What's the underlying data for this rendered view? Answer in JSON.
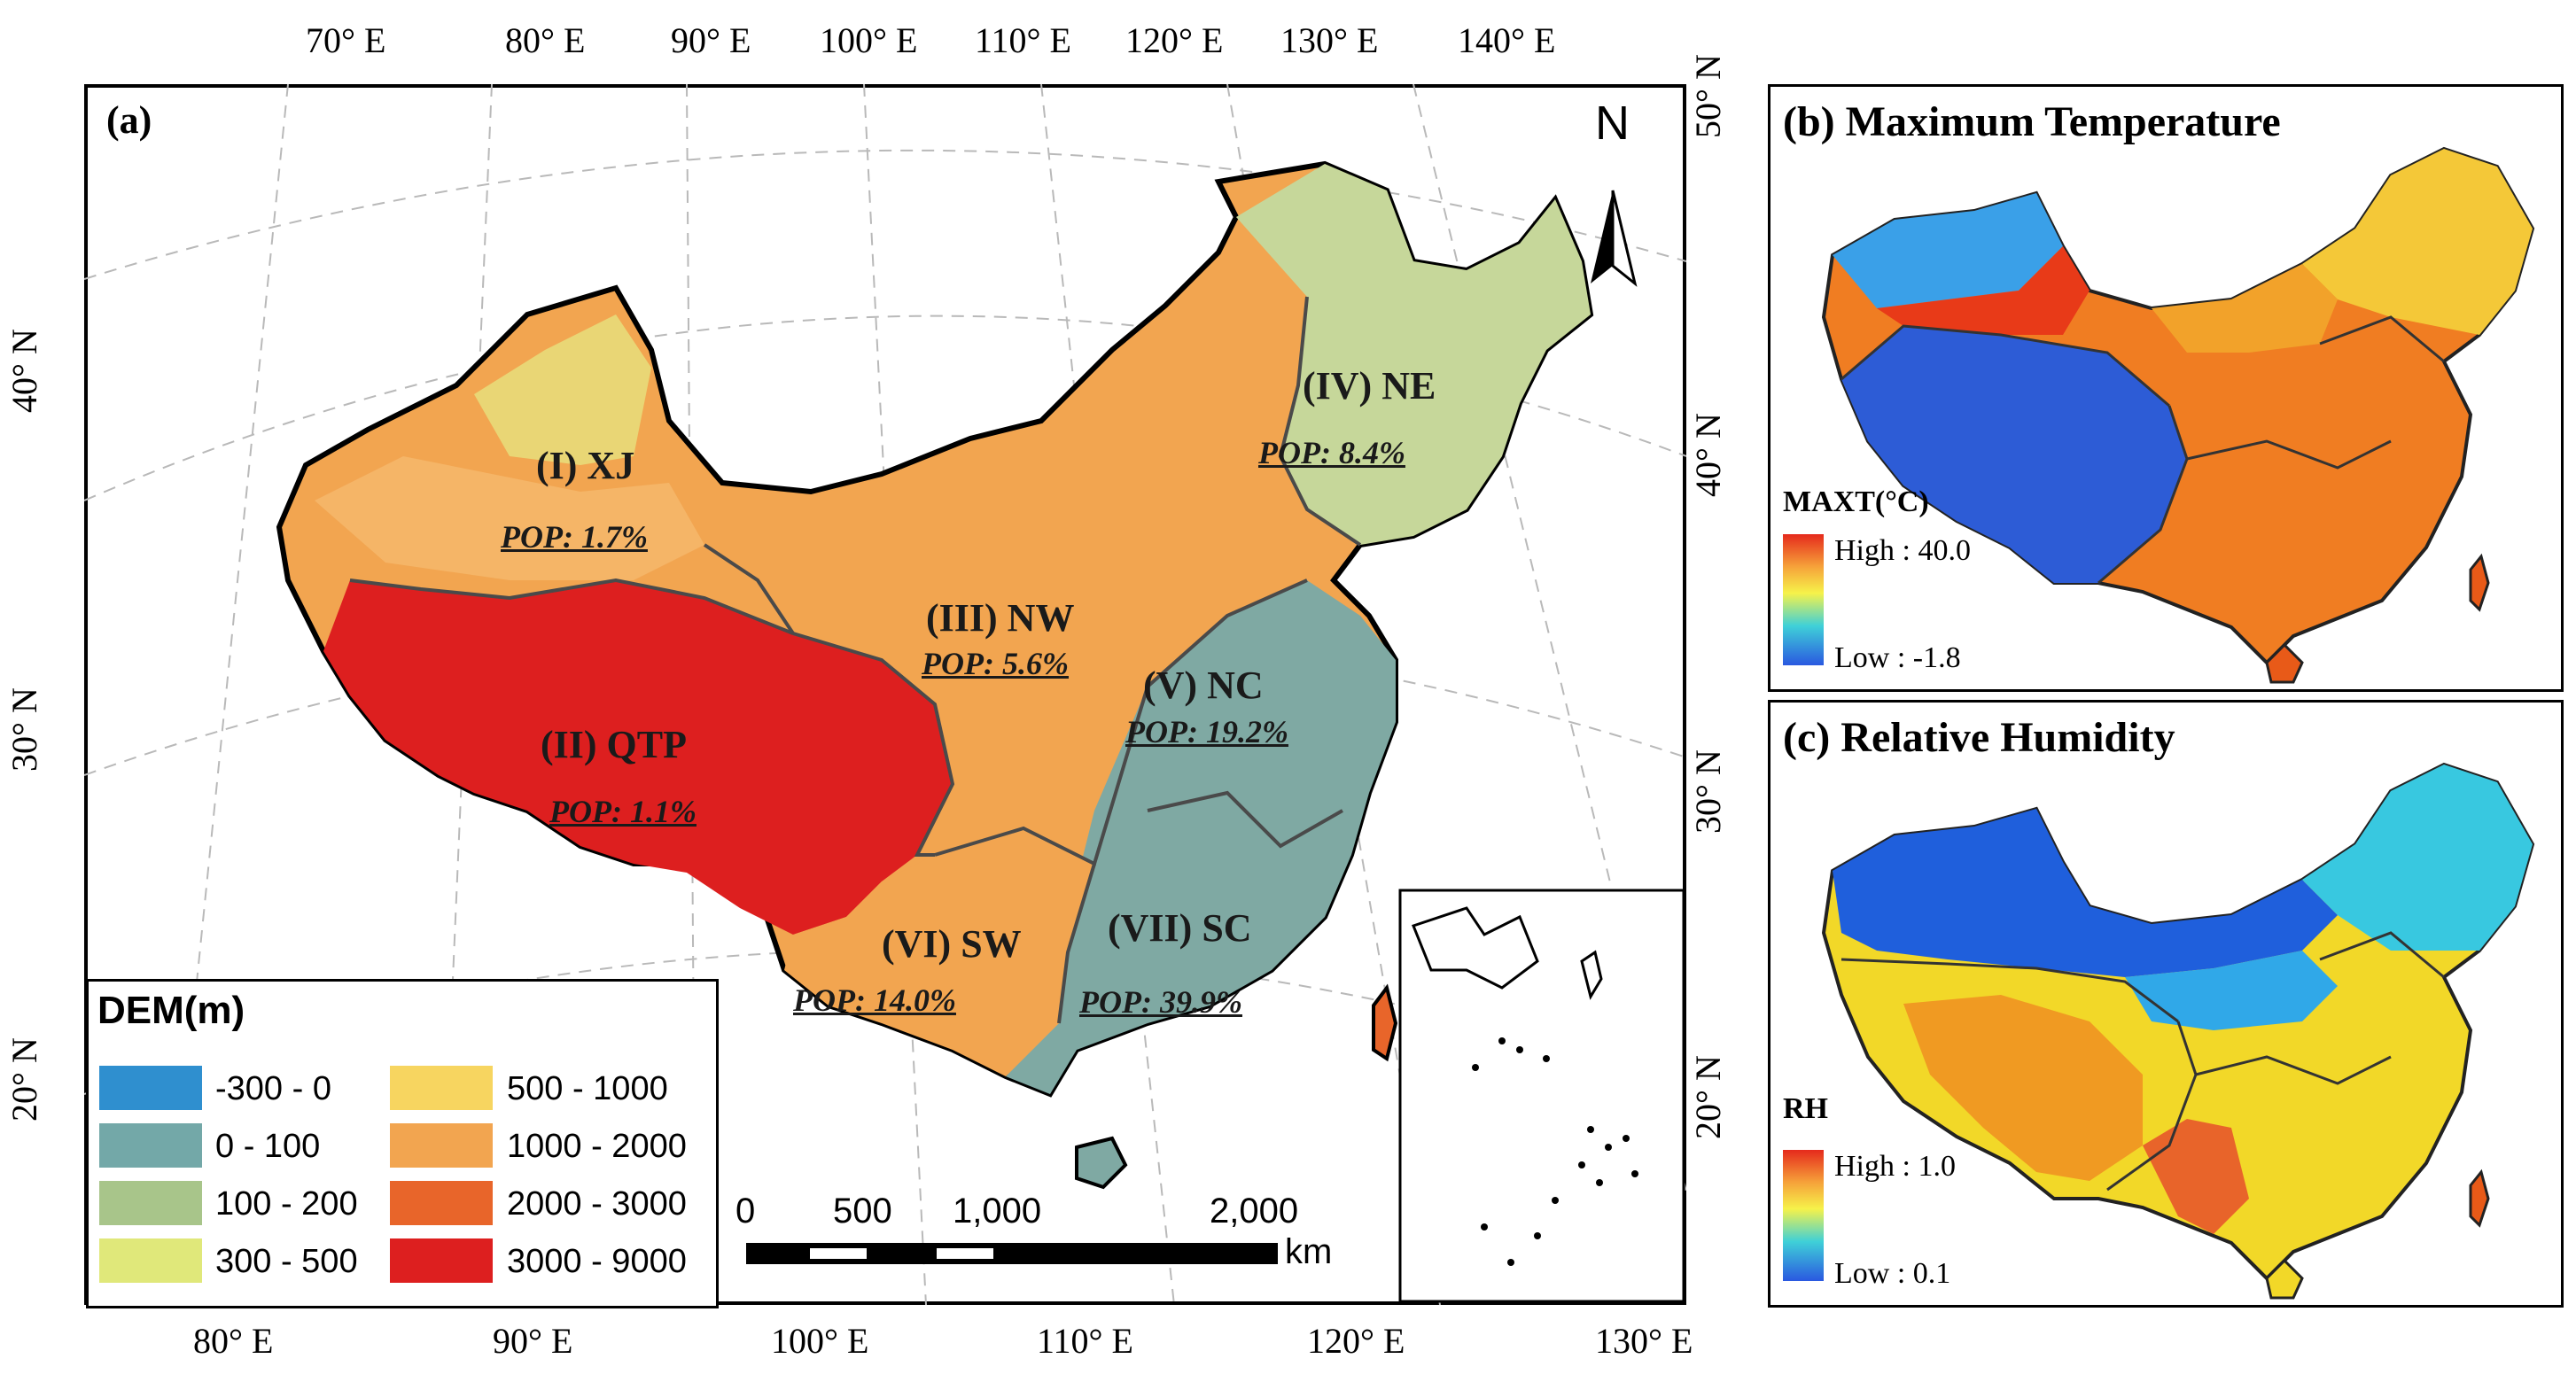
{
  "panel_a": {
    "label": "(a)",
    "north_arrow": "N",
    "top_lon_ticks": [
      "70° E",
      "80° E",
      "90° E",
      "100° E",
      "110° E",
      "120° E",
      "130° E",
      "140° E"
    ],
    "bottom_lon_ticks": [
      "80° E",
      "90° E",
      "100° E",
      "110° E",
      "120° E",
      "130° E"
    ],
    "left_lat_ticks": [
      "40° N",
      "30° N",
      "20° N"
    ],
    "right_lat_ticks": [
      "50° N",
      "40° N",
      "30° N",
      "20° N"
    ],
    "regions": [
      {
        "name": "(I) XJ",
        "pop": "POP: 1.7%"
      },
      {
        "name": "(II) QTP",
        "pop": "POP: 1.1%"
      },
      {
        "name": "(III) NW",
        "pop": "POP: 5.6%"
      },
      {
        "name": "(IV) NE",
        "pop": "POP: 8.4%"
      },
      {
        "name": "(V) NC",
        "pop": "POP: 19.2%"
      },
      {
        "name": "(VI) SW",
        "pop": "POP: 14.0%"
      },
      {
        "name": "(VII) SC",
        "pop": "POP: 39.9%"
      }
    ],
    "legend": {
      "title": "DEM(m)",
      "items": [
        {
          "label": "-300 - 0",
          "color": "#2f8fcf"
        },
        {
          "label": "0 - 100",
          "color": "#73a8a8"
        },
        {
          "label": "100 - 200",
          "color": "#a8c58a"
        },
        {
          "label": "300 - 500",
          "color": "#e0e87a"
        },
        {
          "label": "500 - 1000",
          "color": "#f7d560"
        },
        {
          "label": "1000 - 2000",
          "color": "#f2a550"
        },
        {
          "label": "2000 - 3000",
          "color": "#e8652a"
        },
        {
          "label": "3000 - 9000",
          "color": "#dd1f1f"
        }
      ]
    },
    "scale_bar": {
      "labels": [
        "0",
        "500",
        "1,000",
        "2,000"
      ],
      "unit": "km"
    }
  },
  "panel_b": {
    "title": "(b) Maximum Temperature",
    "legend_title": "MAXT(°C)",
    "high_label": "High : 40.0",
    "low_label": "Low : -1.8"
  },
  "panel_c": {
    "title": "(c) Relative Humidity",
    "legend_title": "RH",
    "high_label": "High : 1.0",
    "low_label": "Low : 0.1"
  }
}
